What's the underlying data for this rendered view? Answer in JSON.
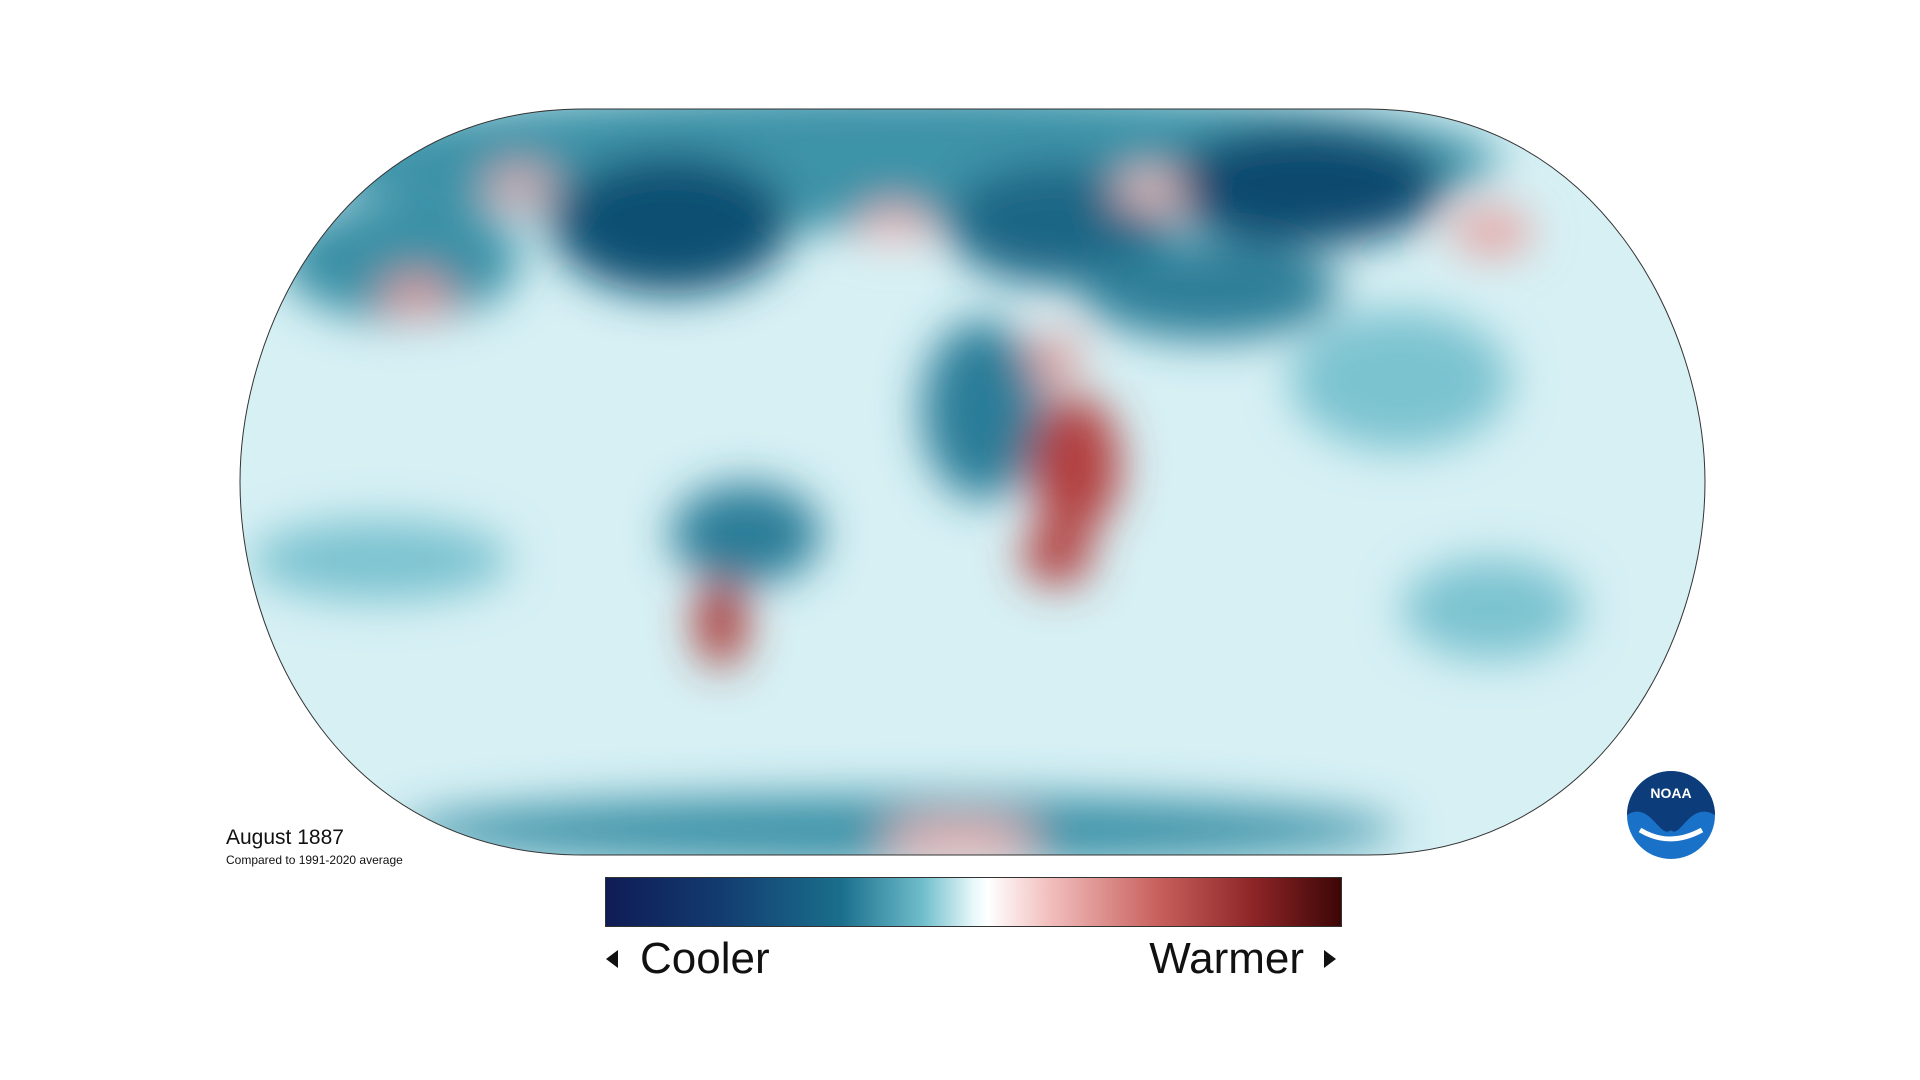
{
  "map": {
    "title": "August 1887",
    "subtitle": "Compared to 1991-2020 average",
    "legend": {
      "low": "Cooler",
      "high": "Warmer"
    },
    "logo": "NOAA"
  }
}
